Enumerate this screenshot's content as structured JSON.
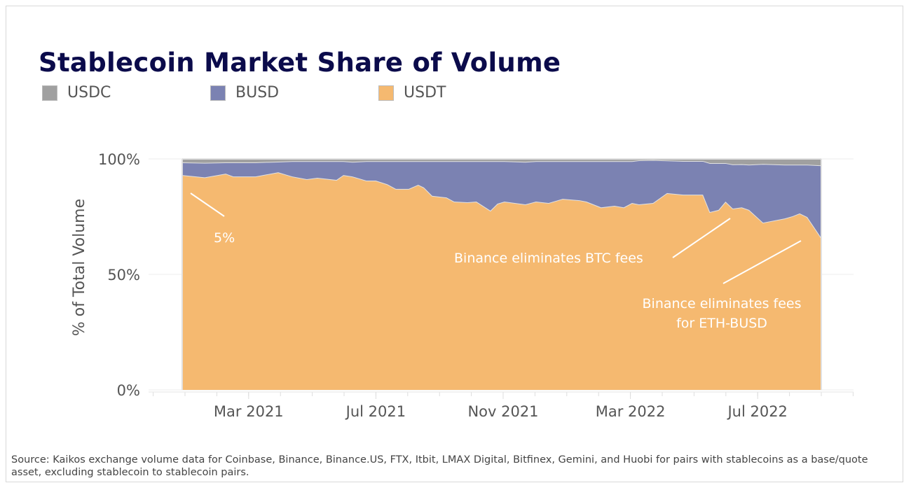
{
  "chart_data": {
    "type": "area",
    "stacked": true,
    "normalized_percent": true,
    "title": "Stablecoin Market Share of Volume",
    "ylabel": "% of Total Volume",
    "xlabel": "",
    "ylim": [
      0,
      100
    ],
    "yticks": [
      "0%",
      "50%",
      "100%"
    ],
    "x_unit": "months since Jan 2021",
    "xticks": [
      {
        "x": 2,
        "label": "Mar 2021"
      },
      {
        "x": 6,
        "label": "Jul 2021"
      },
      {
        "x": 10,
        "label": "Nov 2021"
      },
      {
        "x": 14,
        "label": "Mar 2022"
      },
      {
        "x": 18,
        "label": "Jul 2022"
      }
    ],
    "legend_position": "top-left",
    "grid": true,
    "x": [
      -0.09,
      0.62,
      1.28,
      1.52,
      2.22,
      2.93,
      3.37,
      3.83,
      4.16,
      4.76,
      4.98,
      5.26,
      5.7,
      6.0,
      6.36,
      6.63,
      7.03,
      7.33,
      7.51,
      7.77,
      8.22,
      8.46,
      8.88,
      9.16,
      9.6,
      9.82,
      10.04,
      10.7,
      11.03,
      11.43,
      11.87,
      12.4,
      12.62,
      13.08,
      13.5,
      13.79,
      14.05,
      14.27,
      14.71,
      15.15,
      15.66,
      16.28,
      16.5,
      16.77,
      16.99,
      17.22,
      17.5,
      17.73,
      18.17,
      18.85,
      19.1,
      19.32,
      19.56,
      20.0
    ],
    "series": [
      {
        "name": "USDT",
        "color": "#f5b970",
        "values": [
          93,
          92,
          93.6,
          92.4,
          92.4,
          94.2,
          92.4,
          91.2,
          91.8,
          90.9,
          93,
          92.4,
          90.6,
          90.6,
          89,
          87,
          87,
          88.8,
          87.6,
          84,
          83.3,
          81.5,
          81.2,
          81.5,
          77.6,
          80.6,
          81.5,
          80.3,
          81.5,
          80.9,
          82.7,
          82.1,
          81.5,
          79,
          79.7,
          79,
          80.9,
          80.3,
          80.9,
          85.2,
          84.5,
          84.5,
          77,
          77.9,
          81.5,
          78.5,
          79,
          77.9,
          72.4,
          74.2,
          75.2,
          76.4,
          74.8,
          65.8
        ]
      },
      {
        "name": "BUSD",
        "color": "#7b82b2",
        "values": [
          5.5,
          6.3,
          4.9,
          6.1,
          6.1,
          4.6,
          6.6,
          7.8,
          7.2,
          8.1,
          6.0,
          6.3,
          8.4,
          8.4,
          10,
          12,
          12,
          10.2,
          11.4,
          15,
          15.7,
          17.5,
          17.8,
          17.5,
          21.4,
          18.4,
          17.5,
          18.4,
          17.5,
          18.1,
          16.3,
          16.9,
          17.5,
          20,
          19.3,
          20,
          18.1,
          19.1,
          18.6,
          14.1,
          14.6,
          14.6,
          21.2,
          20.3,
          16.7,
          19.1,
          18.7,
          19.6,
          25.4,
          23.3,
          22.3,
          21.1,
          22.7,
          31.4
        ]
      },
      {
        "name": "USDC",
        "color": "#a0a0a0",
        "values": [
          1.5,
          1.7,
          1.5,
          1.5,
          1.5,
          1.2,
          1.0,
          1.0,
          1.0,
          1.0,
          1.0,
          1.3,
          1.0,
          1.0,
          1.0,
          1.0,
          1.0,
          1.0,
          1.0,
          1.0,
          1.0,
          1.0,
          1.0,
          1.0,
          1.0,
          1.0,
          1.0,
          1.3,
          1.0,
          1.0,
          1.0,
          1.0,
          1.0,
          1.0,
          1.0,
          1.0,
          1.0,
          0.6,
          0.5,
          0.7,
          0.9,
          0.9,
          1.8,
          1.8,
          1.8,
          2.4,
          2.3,
          2.5,
          2.2,
          2.5,
          2.5,
          2.5,
          2.5,
          2.8
        ]
      }
    ],
    "annotations": [
      {
        "text": "5%"
      },
      {
        "text": "Binance eliminates BTC fees"
      },
      {
        "text": "Binance eliminates fees",
        "text2": "for ETH-BUSD"
      }
    ]
  },
  "source": "Source: Kaikos exchange volume data for Coinbase, Binance, Binance.US, FTX, Itbit, LMAX Digital, Bitfinex, Gemini, and Huobi for pairs with stablecoins as a base/quote asset, excluding stablecoin to stablecoin pairs."
}
